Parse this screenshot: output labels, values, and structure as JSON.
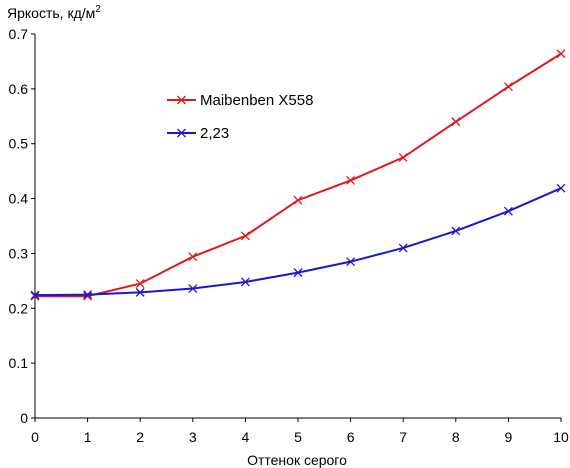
{
  "chart_data": {
    "type": "line",
    "ylabel": "Яркость, кд/м",
    "ylabel_sup": "2",
    "xlabel": "Оттенок серого",
    "xlim": [
      0,
      10
    ],
    "ylim": [
      0,
      0.7
    ],
    "x_ticks": [
      "0",
      "1",
      "2",
      "3",
      "4",
      "5",
      "6",
      "7",
      "8",
      "9",
      "10"
    ],
    "y_ticks": [
      "0",
      "0.1",
      "0.2",
      "0.3",
      "0.4",
      "0.5",
      "0.6",
      "0.7"
    ],
    "x": [
      0,
      1,
      2,
      3,
      4,
      5,
      6,
      7,
      8,
      9,
      10
    ],
    "grid": false,
    "legend_position": "top-center",
    "series": [
      {
        "name": "Maibenben X558",
        "color": "#e01818",
        "values": [
          0.222,
          0.222,
          0.245,
          0.294,
          0.332,
          0.397,
          0.433,
          0.475,
          0.54,
          0.604,
          0.664
        ]
      },
      {
        "name": "2,23",
        "color": "#1818d0",
        "values": [
          0.224,
          0.225,
          0.229,
          0.236,
          0.248,
          0.265,
          0.285,
          0.31,
          0.341,
          0.377,
          0.419
        ]
      }
    ]
  }
}
